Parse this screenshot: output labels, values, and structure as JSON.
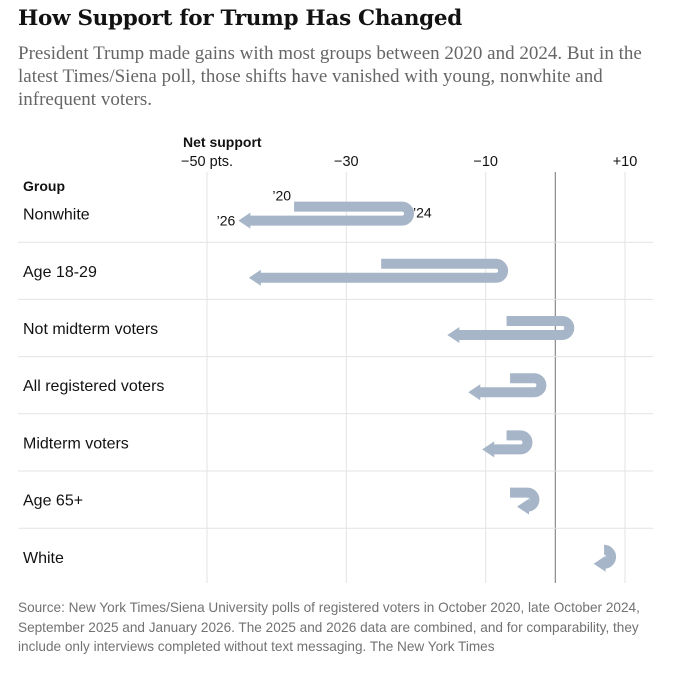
{
  "title": "How Support for Trump Has Changed",
  "subtitle": "President Trump made gains with most groups between 2020 and 2024. But in the latest Times/Siena poll, those shifts have vanished with young, nonwhite and infrequent voters.",
  "source": "Source: New York Times/Siena University polls of registered voters in October 2020, late October 2024, September 2025 and January 2026. The 2025 and 2026 data are combined, and for comparability, they include only interviews completed without text messaging.  The New York Times",
  "colors": {
    "arrow": "#a6b5c8",
    "grid": "#e3e3e3",
    "zero_line": "#8a8a8a",
    "highlight_row": "#f4f4f4",
    "text": "#121212"
  },
  "chart_data": {
    "type": "connected-arrow",
    "title": "How Support for Trump Has Changed",
    "xlabel": "Net support",
    "ylabel": "Group",
    "xlim": [
      -56,
      15
    ],
    "ticks": [
      -50,
      -30,
      -10,
      10
    ],
    "tick_labels": [
      "−50 pts.",
      "−30",
      "−10",
      "+10"
    ],
    "zero_line": 0,
    "year_labels": {
      "y2020": "’20",
      "y2024": "’24",
      "y2026": "’26"
    },
    "series_names": [
      "2020",
      "2024",
      "2026"
    ],
    "groups": [
      {
        "name": "Nonwhite",
        "y2020": -37.5,
        "y2024": -21,
        "y2026": -45.5,
        "annotated": true,
        "highlight": false
      },
      {
        "name": "Age 18-29",
        "y2020": -25,
        "y2024": -7.5,
        "y2026": -44,
        "annotated": false,
        "highlight": false
      },
      {
        "name": "Not midterm voters",
        "y2020": -7,
        "y2024": 2,
        "y2026": -15.5,
        "annotated": false,
        "highlight": false
      },
      {
        "name": "All registered voters",
        "y2020": -6.5,
        "y2024": -2,
        "y2026": -12.5,
        "annotated": false,
        "highlight": false
      },
      {
        "name": "Midterm voters",
        "y2020": -7,
        "y2024": -4,
        "y2026": -10.5,
        "annotated": false,
        "highlight": false
      },
      {
        "name": "Age 65+",
        "y2020": -6.5,
        "y2024": -3,
        "y2026": -5.5,
        "annotated": false,
        "highlight": false
      },
      {
        "name": "White",
        "y2020": 7.5,
        "y2024": 8,
        "y2026": 5.5,
        "annotated": false,
        "highlight": false
      }
    ]
  }
}
